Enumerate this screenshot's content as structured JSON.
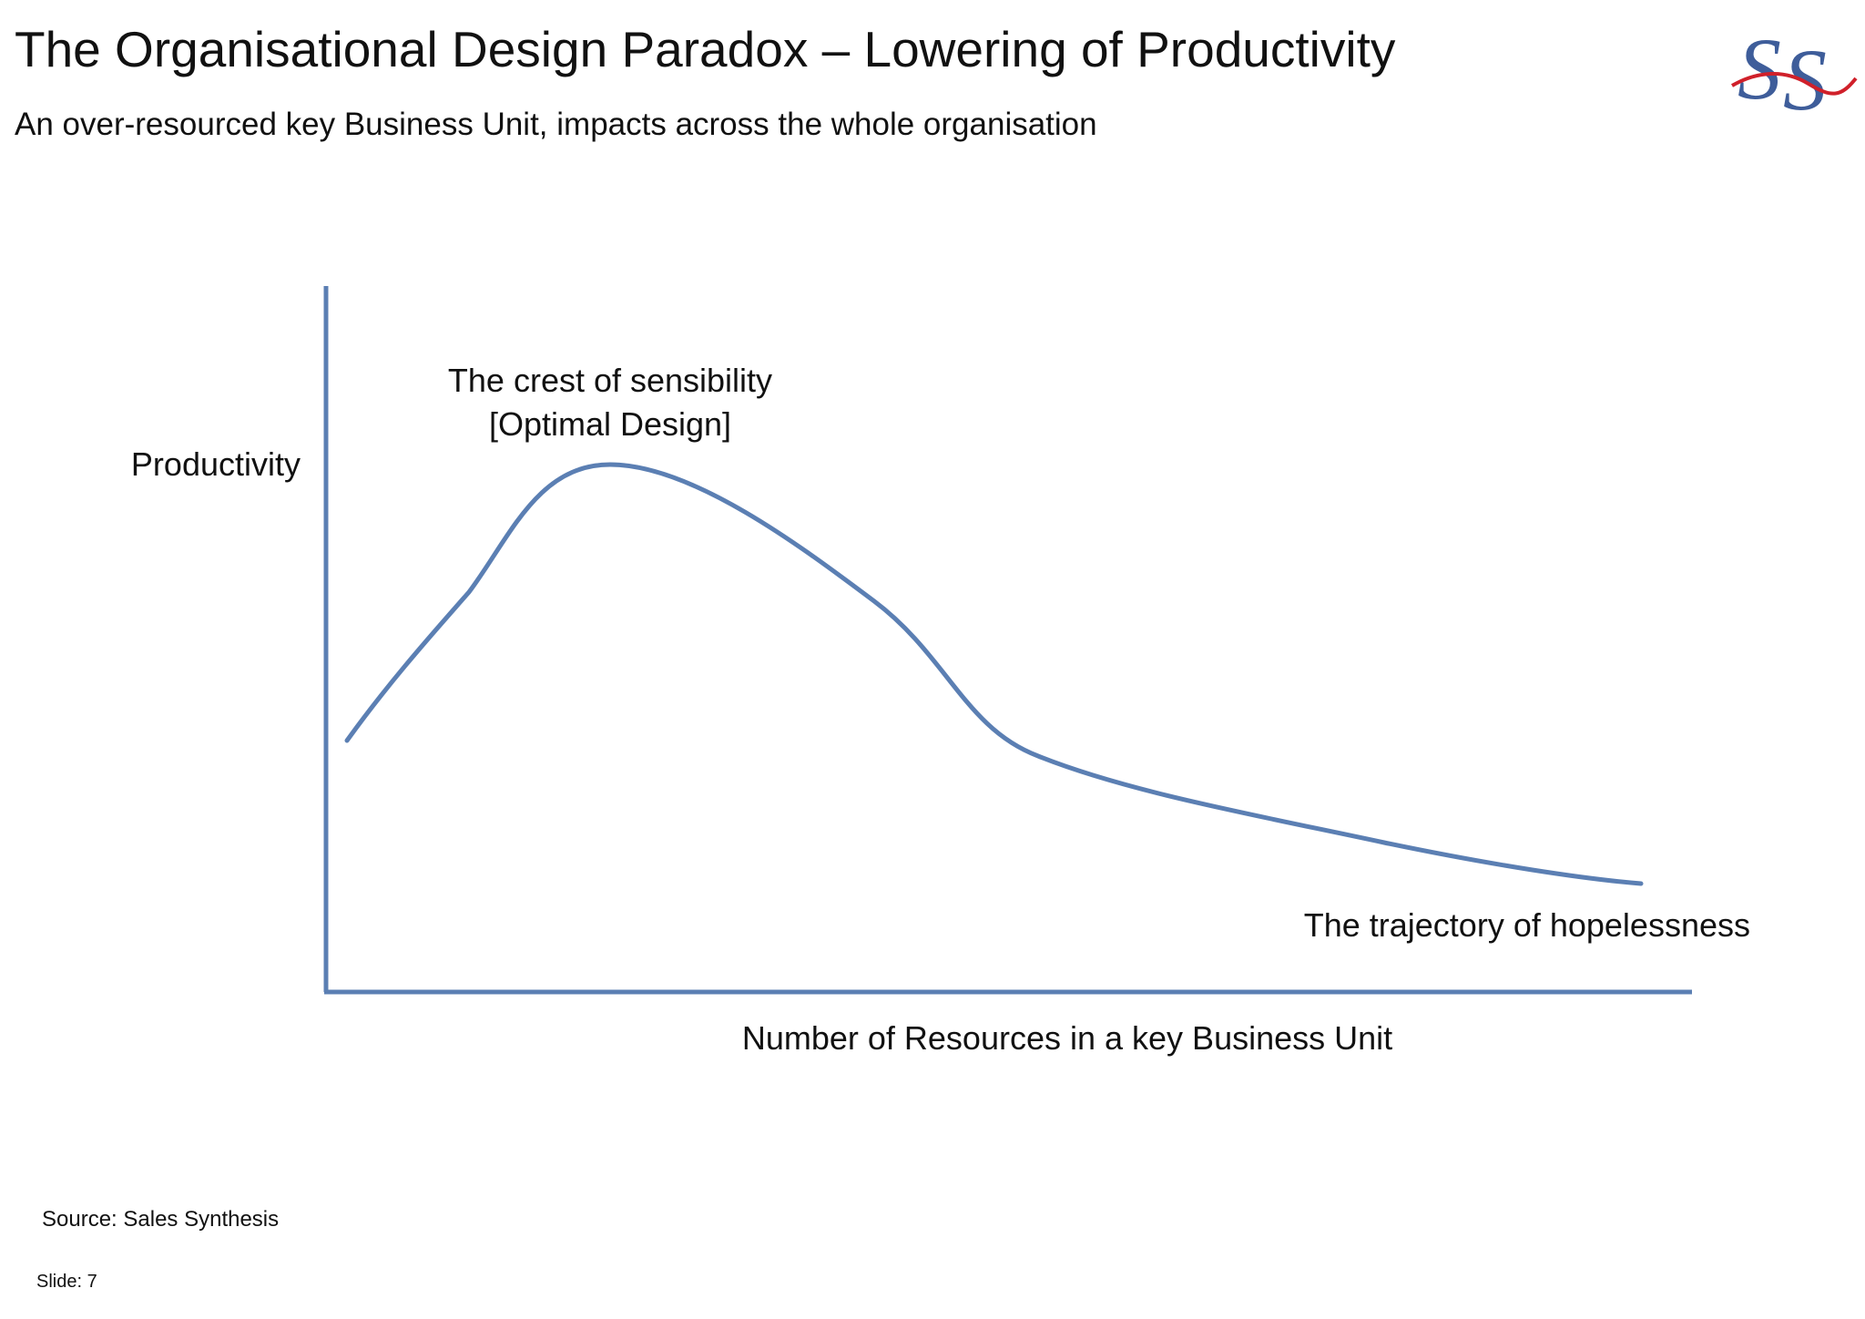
{
  "slide": {
    "title": "The Organisational Design Paradox – Lowering of Productivity",
    "subtitle": "An over-resourced key Business Unit, impacts across the whole organisation",
    "logo_text": "SS",
    "source": "Source: Sales Synthesis",
    "slide_number": "Slide: 7"
  },
  "colors": {
    "curve": "#5b7fb3",
    "axis": "#5b7fb3",
    "logo_blue": "#3e5d9a",
    "logo_red": "#d0202a"
  },
  "diagram": {
    "y_axis_label": "Productivity",
    "x_axis_label": "Number of Resources in a key Business Unit",
    "peak_label_line1": "The crest of sensibility",
    "peak_label_line2": "[Optimal Design]",
    "tail_label": "The trajectory of hopelessness"
  }
}
